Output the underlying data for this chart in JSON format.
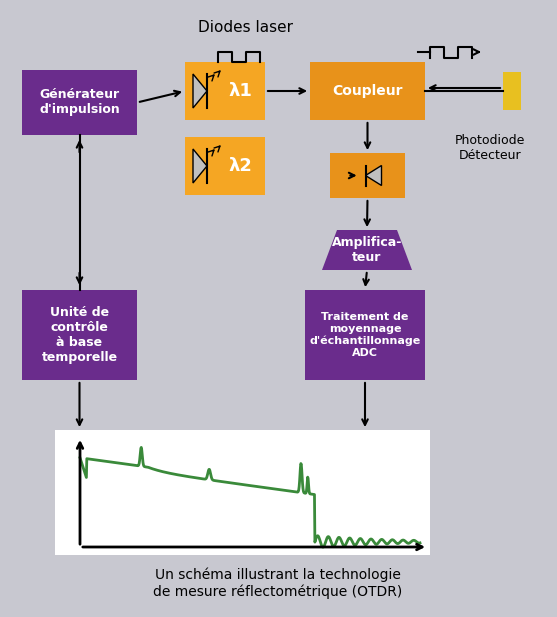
{
  "background_color": "#c8c8d0",
  "orange": "#f5a623",
  "orange2": "#e8921a",
  "purple": "#6a2c8c",
  "purple_dark": "#5a1e7a",
  "green": "#3a8a3a",
  "yellow": "#f5e642",
  "black": "#000000",
  "white": "#ffffff",
  "gray_light": "#d0d0d8",
  "title": "Diodes laser",
  "caption1": "Un schéma illustrant la technologie",
  "caption2": "de mesure réflectométrique (OTDR)",
  "box_generateur": "Générateur\nd'impulsion",
  "box_coupleur": "Coupleur",
  "box_amplificateur": "Amplifica-\nteur",
  "box_traitement": "Traitement de\nmoyennage\nd'échantillonnage\nADC",
  "box_unite": "Unité de\ncontrôle\nà base\ntemporelle",
  "label_lambda1": "λ1",
  "label_lambda2": "λ2",
  "label_photodiode": "Photodiode\nDétecteur"
}
